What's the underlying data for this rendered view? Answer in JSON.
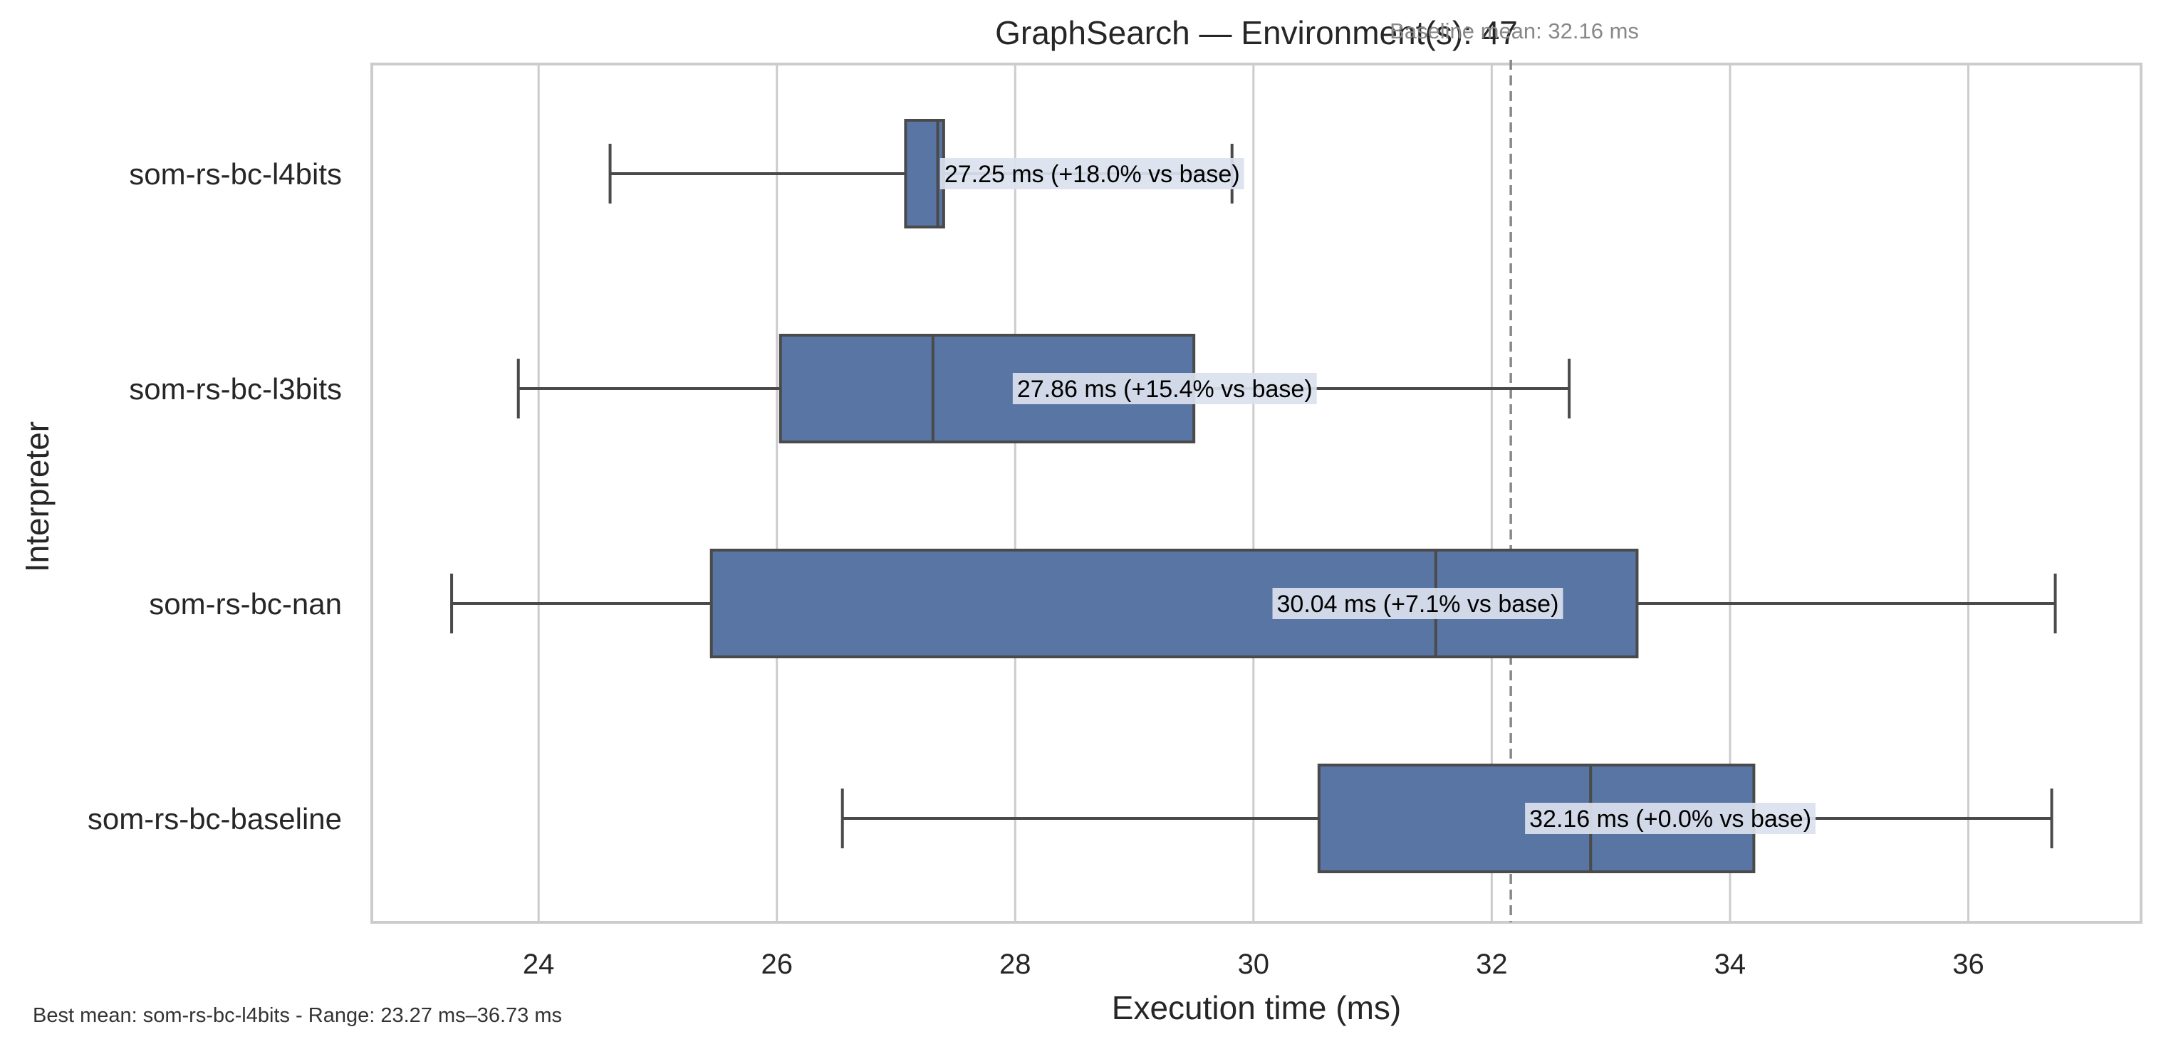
{
  "chart_data": {
    "type": "box",
    "orientation": "horizontal",
    "title": "GraphSearch — Environment(s): 47",
    "xlabel": "Execution time (ms)",
    "ylabel": "Interpreter",
    "xlim": [
      22.6,
      37.45
    ],
    "xticks": [
      24,
      26,
      28,
      30,
      32,
      34,
      36
    ],
    "xtick_labels": [
      "24",
      "26",
      "28",
      "30",
      "32",
      "34",
      "36"
    ],
    "grid": "vertical",
    "categories": [
      "som-rs-bc-l4bits",
      "som-rs-bc-l3bits",
      "som-rs-bc-nan",
      "som-rs-bc-baseline"
    ],
    "boxes": [
      {
        "name": "som-rs-bc-l4bits",
        "whisker_low": 24.6,
        "q1": 27.08,
        "median": 27.35,
        "q3": 27.4,
        "whisker_high": 29.82,
        "mean": 27.25,
        "label": "27.25 ms  (+18.0% vs base)"
      },
      {
        "name": "som-rs-bc-l3bits",
        "whisker_low": 23.83,
        "q1": 26.03,
        "median": 27.31,
        "q3": 29.5,
        "whisker_high": 32.65,
        "mean": 27.86,
        "label": "27.86 ms  (+15.4% vs base)"
      },
      {
        "name": "som-rs-bc-nan",
        "whisker_low": 23.27,
        "q1": 25.45,
        "median": 31.53,
        "q3": 33.22,
        "whisker_high": 36.73,
        "mean": 30.04,
        "label": "30.04 ms  (+7.1% vs base)"
      },
      {
        "name": "som-rs-bc-baseline",
        "whisker_low": 26.55,
        "q1": 30.55,
        "median": 32.83,
        "q3": 34.2,
        "whisker_high": 36.7,
        "mean": 32.16,
        "label": "32.16 ms  (+0.0% vs base)"
      }
    ],
    "reference_line": {
      "value": 32.16,
      "label": "Baseline mean: 32.16 ms"
    },
    "footnote": "Best mean: som-rs-bc-l4bits - Range: 23.27 ms–36.73 ms",
    "colors": {
      "box": "#5975a4",
      "edge": "#4a4a4a",
      "grid": "#cccccc",
      "frame": "#cccccc",
      "reference": "#888888",
      "label_bg": "#dbe2ee"
    }
  }
}
